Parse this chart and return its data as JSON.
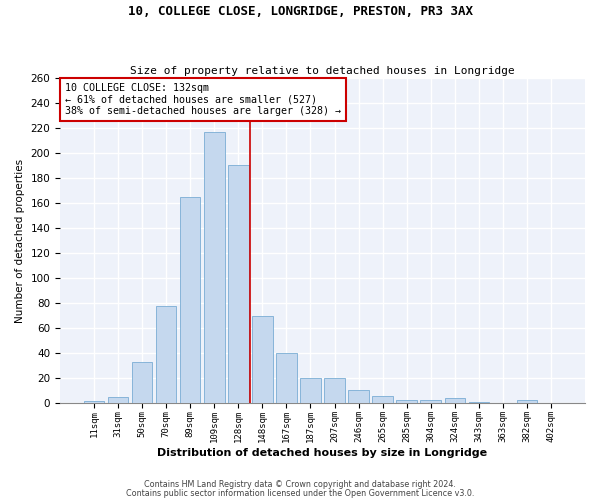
{
  "title1": "10, COLLEGE CLOSE, LONGRIDGE, PRESTON, PR3 3AX",
  "title2": "Size of property relative to detached houses in Longridge",
  "xlabel": "Distribution of detached houses by size in Longridge",
  "ylabel": "Number of detached properties",
  "bar_labels": [
    "11sqm",
    "31sqm",
    "50sqm",
    "70sqm",
    "89sqm",
    "109sqm",
    "128sqm",
    "148sqm",
    "167sqm",
    "187sqm",
    "207sqm",
    "246sqm",
    "265sqm",
    "285sqm",
    "304sqm",
    "324sqm",
    "343sqm",
    "363sqm",
    "382sqm",
    "402sqm"
  ],
  "bar_values": [
    2,
    5,
    33,
    78,
    165,
    217,
    190,
    70,
    40,
    20,
    20,
    11,
    6,
    3,
    3,
    4,
    1,
    0,
    3,
    0
  ],
  "property_label": "10 COLLEGE CLOSE: 132sqm",
  "annotation_line1": "← 61% of detached houses are smaller (527)",
  "annotation_line2": "38% of semi-detached houses are larger (328) →",
  "bar_color": "#c5d8ee",
  "bar_edge_color": "#7aadd4",
  "vline_color": "#cc0000",
  "vline_x_index": 6.5,
  "annotation_box_color": "#ffffff",
  "annotation_box_edge": "#cc0000",
  "background_color": "#eef2fa",
  "grid_color": "#ffffff",
  "footer1": "Contains HM Land Registry data © Crown copyright and database right 2024.",
  "footer2": "Contains public sector information licensed under the Open Government Licence v3.0.",
  "ylim": [
    0,
    260
  ],
  "yticks": [
    0,
    20,
    40,
    60,
    80,
    100,
    120,
    140,
    160,
    180,
    200,
    220,
    240,
    260
  ]
}
